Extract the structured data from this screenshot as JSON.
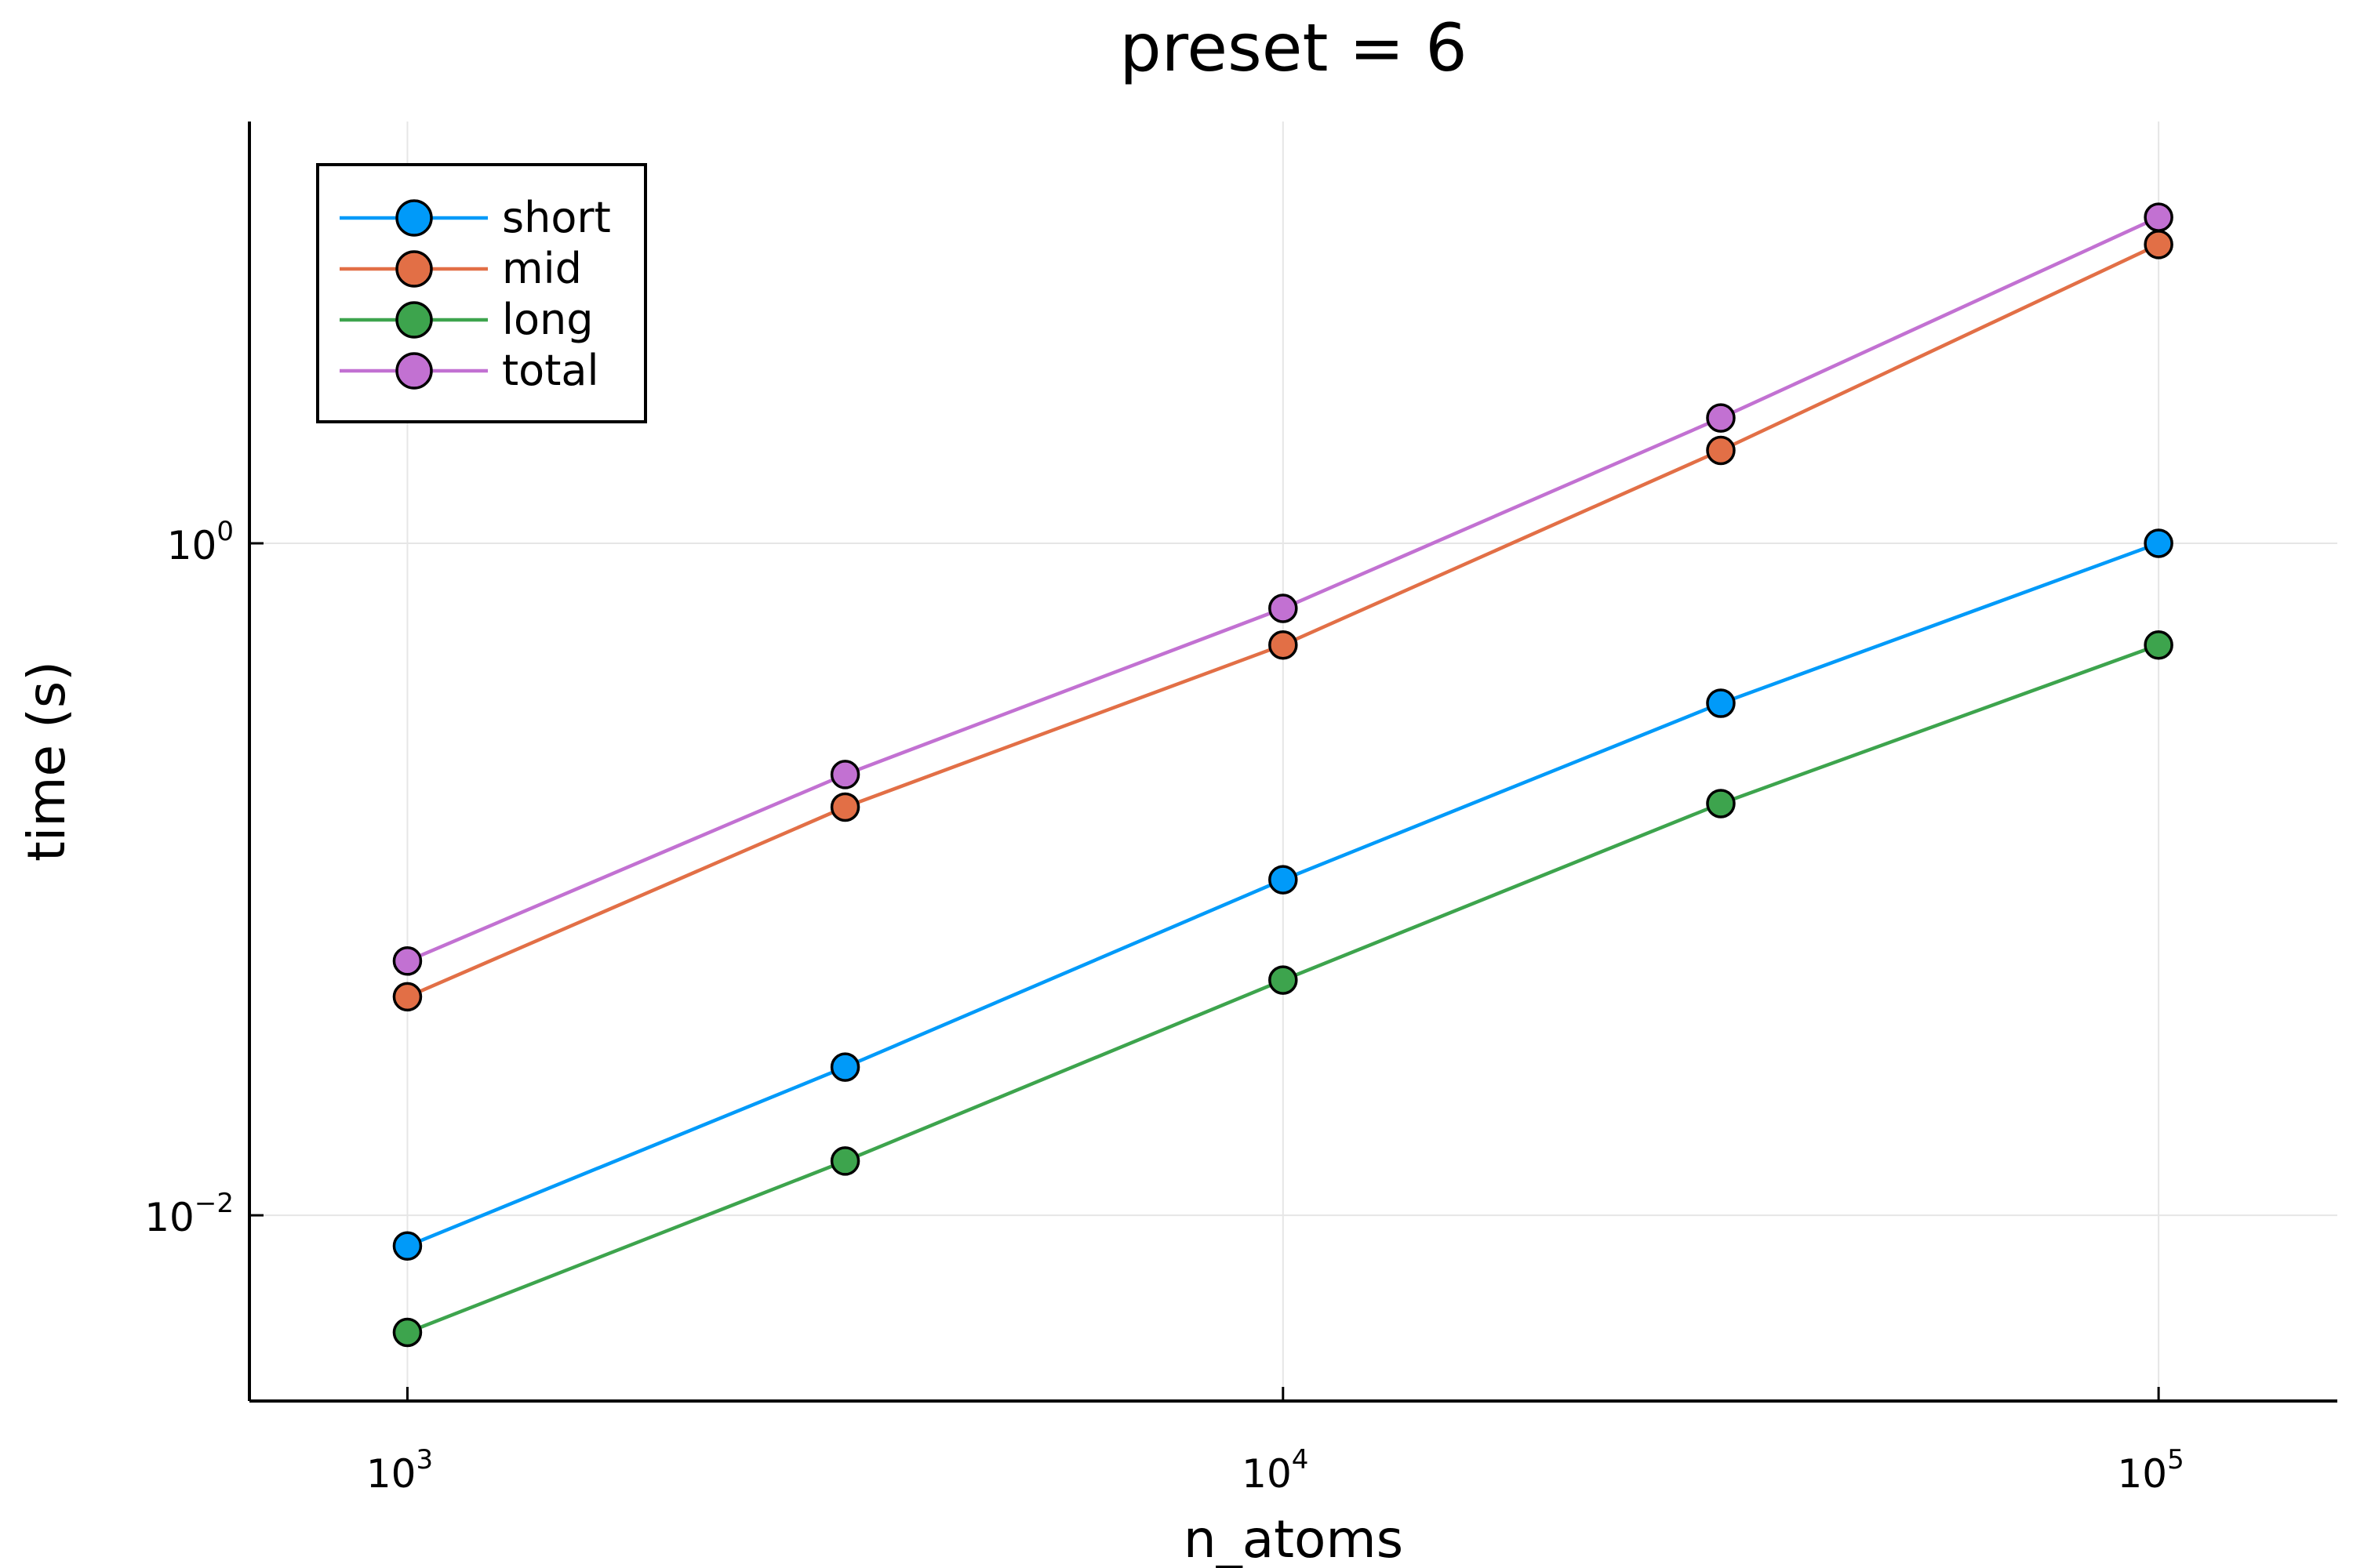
{
  "chart_data": {
    "type": "line",
    "title": "preset = 6",
    "xlabel": "n_atoms",
    "ylabel": "time (s)",
    "x_scale": "log10",
    "y_scale": "log10",
    "xlim": [
      660,
      160000
    ],
    "ylim": [
      0.0028,
      18
    ],
    "grid": true,
    "legend_position": "top-left",
    "x_ticks": [
      {
        "value": 1000,
        "base": "10",
        "exp": "3"
      },
      {
        "value": 10000,
        "base": "10",
        "exp": "4"
      },
      {
        "value": 100000,
        "base": "10",
        "exp": "5"
      }
    ],
    "y_ticks": [
      {
        "value": 0.01,
        "base": "10",
        "exp": "−2"
      },
      {
        "value": 1,
        "base": "10",
        "exp": "0"
      }
    ],
    "x": [
      1000,
      3162,
      10000,
      31623,
      100000
    ],
    "series": [
      {
        "name": "short",
        "color": "#009af9",
        "values": [
          0.0081,
          0.0276,
          0.0997,
          0.334,
          1.0
        ]
      },
      {
        "name": "mid",
        "color": "#e26f46",
        "values": [
          0.0447,
          0.164,
          0.498,
          1.89,
          7.75
        ]
      },
      {
        "name": "long",
        "color": "#3da44d",
        "values": [
          0.00448,
          0.0145,
          0.0501,
          0.168,
          0.498
        ]
      },
      {
        "name": "total",
        "color": "#c271d2",
        "values": [
          0.0571,
          0.205,
          0.64,
          2.36,
          9.34
        ]
      }
    ]
  }
}
